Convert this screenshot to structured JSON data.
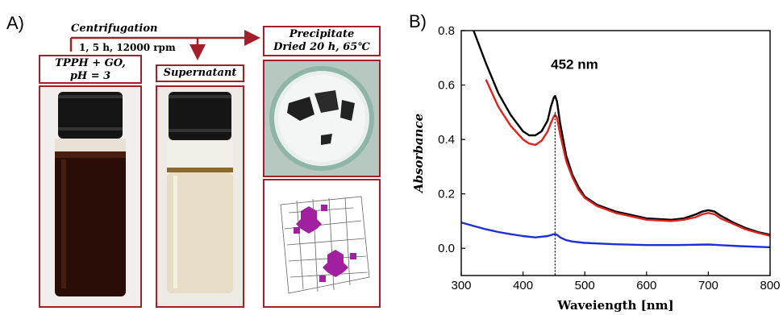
{
  "panel_a": {
    "letter": "A)",
    "step_centrifugation": {
      "title": "Centrifugation",
      "detail": "1, 5 h, 12000 rpm"
    },
    "sample_label": [
      "TPPH + GO,",
      "pH = 3"
    ],
    "supernatant_label": "Supernatant",
    "precipitate_label": [
      "Precipitate",
      "Dried 20 h, 65℃"
    ],
    "colors": {
      "frame": "#a3202b",
      "arrow": "#a3202b"
    }
  },
  "panel_b": {
    "letter": "B)",
    "annotation": "452 nm"
  },
  "chart_data": {
    "type": "line",
    "xlabel": "Waveiength [nm]",
    "ylabel": "Absorbance",
    "xlim": [
      300,
      800
    ],
    "ylim": [
      -0.1,
      0.8
    ],
    "xticks": [
      300,
      400,
      500,
      600,
      700,
      800
    ],
    "yticks": [
      0.0,
      0.2,
      0.4,
      0.6,
      0.8
    ],
    "grid": false,
    "marker_line_x": 452,
    "series": [
      {
        "color": "#000000",
        "x": [
          320,
          340,
          360,
          380,
          400,
          410,
          420,
          430,
          440,
          445,
          450,
          452,
          455,
          460,
          470,
          480,
          490,
          500,
          520,
          550,
          600,
          640,
          660,
          680,
          690,
          700,
          710,
          720,
          740,
          760,
          780,
          800
        ],
        "y": [
          0.8,
          0.68,
          0.57,
          0.49,
          0.43,
          0.415,
          0.415,
          0.43,
          0.47,
          0.52,
          0.555,
          0.56,
          0.54,
          0.46,
          0.34,
          0.27,
          0.225,
          0.19,
          0.16,
          0.135,
          0.11,
          0.105,
          0.11,
          0.125,
          0.135,
          0.14,
          0.135,
          0.12,
          0.095,
          0.075,
          0.06,
          0.05
        ]
      },
      {
        "color": "#e0231c",
        "x": [
          340,
          360,
          380,
          400,
          410,
          420,
          430,
          440,
          445,
          450,
          452,
          455,
          460,
          470,
          480,
          490,
          500,
          520,
          550,
          600,
          640,
          660,
          680,
          690,
          700,
          710,
          720,
          740,
          760,
          780,
          800
        ],
        "y": [
          0.62,
          0.52,
          0.45,
          0.4,
          0.385,
          0.38,
          0.395,
          0.43,
          0.46,
          0.485,
          0.49,
          0.48,
          0.42,
          0.32,
          0.26,
          0.215,
          0.185,
          0.155,
          0.13,
          0.105,
          0.1,
          0.105,
          0.115,
          0.125,
          0.13,
          0.125,
          0.11,
          0.09,
          0.07,
          0.057,
          0.046
        ]
      },
      {
        "color": "#1f2fd6",
        "x": [
          300,
          320,
          340,
          360,
          380,
          400,
          420,
          440,
          450,
          455,
          460,
          470,
          480,
          500,
          550,
          600,
          650,
          700,
          750,
          800
        ],
        "y": [
          0.095,
          0.082,
          0.07,
          0.06,
          0.052,
          0.045,
          0.04,
          0.045,
          0.052,
          0.05,
          0.04,
          0.03,
          0.025,
          0.02,
          0.015,
          0.012,
          0.012,
          0.014,
          0.008,
          0.004
        ]
      }
    ]
  }
}
